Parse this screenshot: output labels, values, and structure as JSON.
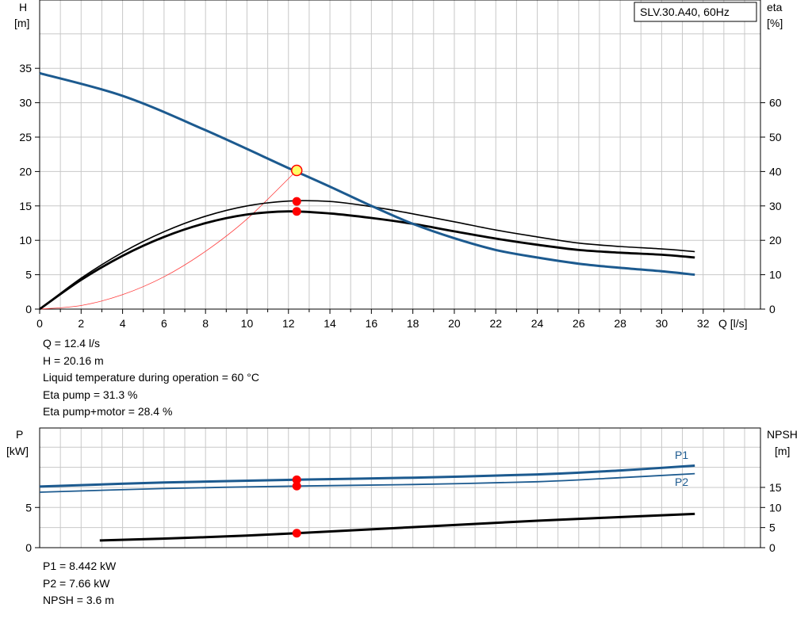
{
  "colors": {
    "head_curve": "#1c5a8f",
    "power_curve": "#1c5a8f",
    "grid": "#c8c8c8",
    "duty_point": "#ff0000",
    "duty_point_head": "#ffff66",
    "system_curve": "#ff3b3b"
  },
  "chart_data": [
    {
      "type": "line",
      "title": "SLV.30.A40, 60Hz",
      "ylabel": "H",
      "ylabel_unit": "[m]",
      "y2label": "eta",
      "y2label_unit": "[%]",
      "xlabel": "Q [l/s]",
      "xlim": [
        0,
        34
      ],
      "ylim": [
        0,
        40
      ],
      "y2lim": [
        0,
        80
      ],
      "x_ticks": [
        "0",
        "2",
        "4",
        "6",
        "8",
        "10",
        "12",
        "14",
        "16",
        "18",
        "20",
        "22",
        "24",
        "26",
        "28",
        "30",
        "32"
      ],
      "y_ticks": [
        "0",
        "5",
        "10",
        "15",
        "20",
        "25",
        "30",
        "35"
      ],
      "y2_ticks": [
        "0",
        "10",
        "20",
        "30",
        "40",
        "50",
        "60"
      ],
      "grid": true,
      "series": [
        {
          "axis": "H",
          "x": [
            0,
            4,
            8,
            12,
            14,
            16,
            18,
            20,
            22,
            24,
            26,
            28,
            30,
            31.6
          ],
          "values": [
            34.3,
            31.0,
            26.0,
            20.5,
            17.8,
            15.0,
            12.4,
            10.3,
            8.6,
            7.5,
            6.6,
            6.0,
            5.5,
            5.0
          ]
        },
        {
          "axis": "eta",
          "x": [
            0,
            2,
            4,
            6,
            8,
            10,
            12,
            14,
            16,
            18,
            20,
            22,
            24,
            26,
            28,
            30,
            31.6
          ],
          "values": [
            0,
            9,
            16.5,
            22.5,
            27,
            30,
            31.4,
            31.3,
            29.8,
            27.7,
            25.4,
            23.0,
            21.0,
            19.2,
            18.2,
            17.5,
            16.7
          ]
        },
        {
          "axis": "eta",
          "x": [
            0,
            2,
            4,
            6,
            8,
            10,
            12,
            14,
            16,
            18,
            20,
            22,
            24,
            26,
            28,
            30,
            31.6
          ],
          "values": [
            0,
            8.5,
            15.5,
            21,
            25,
            27.5,
            28.4,
            27.8,
            26.5,
            24.8,
            22.6,
            20.5,
            18.7,
            17.2,
            16.4,
            15.8,
            15.0
          ]
        },
        {
          "axis": "H",
          "x": [
            0,
            2,
            4,
            6,
            8,
            10,
            12.4
          ],
          "values": [
            0,
            0.52,
            2.1,
            4.7,
            8.4,
            13.1,
            20.16
          ]
        }
      ],
      "duty_point": {
        "Q": 12.4,
        "H": 20.16,
        "eta_pump": 31.3,
        "eta_pump_motor": 28.4
      }
    },
    {
      "type": "line",
      "ylabel": "P",
      "ylabel_unit": "[kW]",
      "y2label": "NPSH",
      "y2label_unit": "[m]",
      "xlim": [
        0,
        34
      ],
      "ylim": [
        0,
        12
      ],
      "y2lim": [
        0,
        24
      ],
      "y_ticks": [
        "0",
        "5"
      ],
      "y2_ticks": [
        "0",
        "5",
        "10",
        "15"
      ],
      "grid": true,
      "series": [
        {
          "name": "P1",
          "x": [
            0,
            6,
            12.4,
            18,
            24,
            28,
            31.6
          ],
          "values": [
            7.6,
            8.1,
            8.44,
            8.7,
            9.1,
            9.6,
            10.2
          ]
        },
        {
          "name": "P2",
          "x": [
            0,
            6,
            12.4,
            18,
            24,
            28,
            31.6
          ],
          "values": [
            6.9,
            7.35,
            7.66,
            7.85,
            8.2,
            8.7,
            9.2
          ]
        },
        {
          "axis": "NPSH",
          "x": [
            2.9,
            8,
            12.4,
            18,
            24,
            31.6
          ],
          "values": [
            1.8,
            2.6,
            3.6,
            5.1,
            6.7,
            8.4
          ]
        }
      ]
    }
  ],
  "info_top": [
    "Q = 12.4 l/s",
    "H = 20.16 m",
    "Liquid temperature during operation = 60 °C",
    "Eta pump = 31.3 %",
    "Eta pump+motor = 28.4 %"
  ],
  "info_bottom": [
    "P1 = 8.442 kW",
    "P2 = 7.66 kW",
    "NPSH = 3.6 m"
  ]
}
